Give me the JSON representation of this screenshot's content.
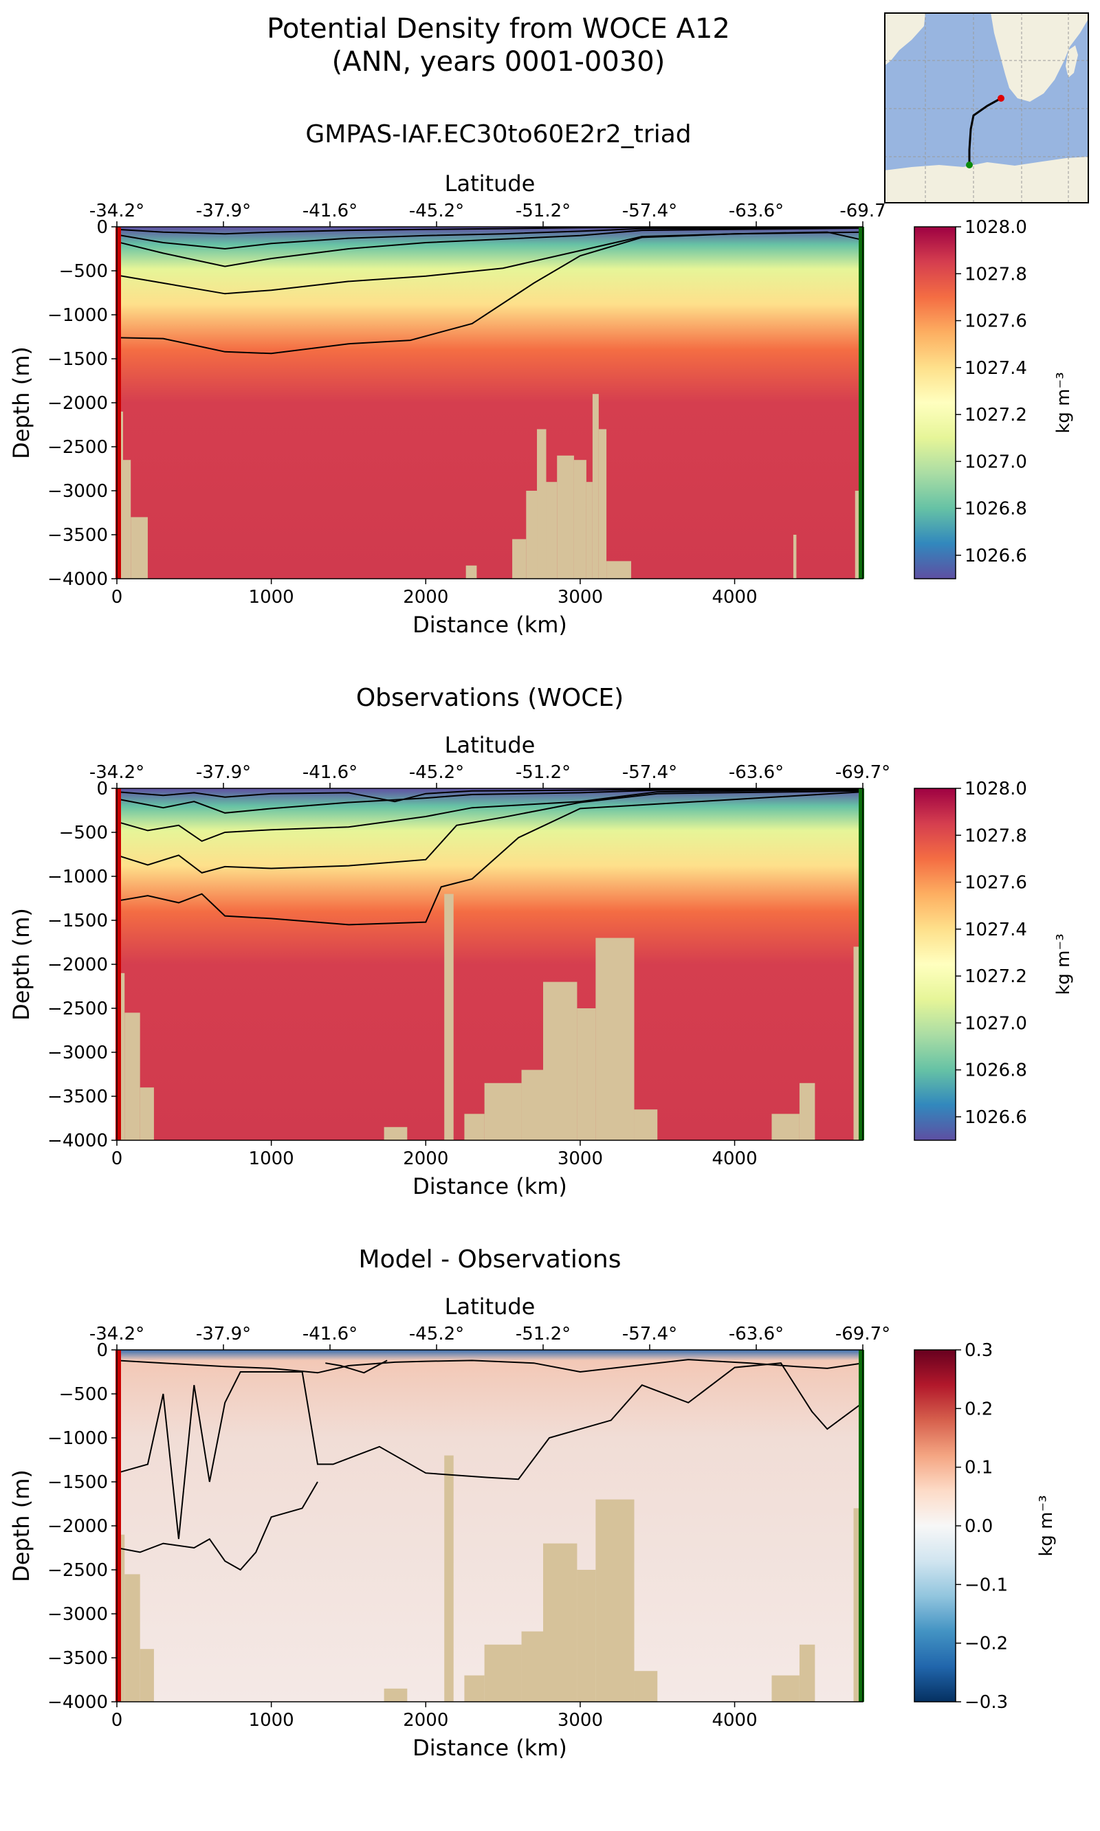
{
  "title": {
    "line1": "Potential Density from WOCE A12",
    "line2": "(ANN, years 0001-0030)",
    "model": "GMPAS-IAF.EC30to60E2r2_triad"
  },
  "colors": {
    "land": "#d6c29a",
    "start_marker": "#cc0000",
    "end_marker": "#0a6e0a",
    "map_ocean": "#98b5e0",
    "map_land": "#f2efdf",
    "contour": "#000000"
  },
  "chart_data": [
    {
      "type": "heatmap",
      "title": "",
      "xlabel": "Distance (km)",
      "ylabel": "Depth (m)",
      "top_axis_label": "Latitude",
      "xlim": [
        0,
        4830
      ],
      "ylim": [
        -4000,
        0
      ],
      "xticks": [
        0,
        1000,
        2000,
        3000,
        4000
      ],
      "xtick_labels": [
        "0",
        "1000",
        "2000",
        "3000",
        "4000"
      ],
      "yticks": [
        0,
        -500,
        -1000,
        -1500,
        -2000,
        -2500,
        -3000,
        -3500,
        -4000
      ],
      "ytick_labels": [
        "0",
        "−500",
        "−1000",
        "−1500",
        "−2000",
        "−2500",
        "−3000",
        "−3500",
        "−4000"
      ],
      "lat_ticks": [
        0,
        690,
        1380,
        2070,
        2760,
        3450,
        4140,
        4830
      ],
      "lat_labels": [
        "-34.2°",
        "-37.9°",
        "-41.6°",
        "-45.2°",
        "-51.2°",
        "-57.4°",
        "-63.6°",
        "-69.7"
      ],
      "colormap": "Spectral_r",
      "colorbar": {
        "label": "kg m⁻³",
        "vmin": 1026.5,
        "vmax": 1028.0,
        "ticks": [
          1028.0,
          1027.8,
          1027.6,
          1027.4,
          1027.2,
          1027.0,
          1026.8,
          1026.6
        ],
        "tick_labels": [
          "1028.0",
          "1027.8",
          "1027.6",
          "1027.4",
          "1027.2",
          "1027.0",
          "1026.8",
          "1026.6"
        ]
      },
      "contour_depths": [
        {
          "x": [
            0,
            300,
            700,
            1000,
            1500,
            2000,
            2500,
            3000,
            3400,
            4830
          ],
          "y": [
            -30,
            -60,
            -80,
            -60,
            -40,
            -30,
            -20,
            -10,
            -5,
            -5
          ]
        },
        {
          "x": [
            0,
            300,
            700,
            1000,
            1500,
            2000,
            2500,
            3000,
            3400,
            4830
          ],
          "y": [
            -90,
            -180,
            -250,
            -190,
            -130,
            -100,
            -80,
            -50,
            -20,
            -10
          ]
        },
        {
          "x": [
            0,
            300,
            700,
            1000,
            1500,
            2000,
            2500,
            3000,
            3400,
            4830
          ],
          "y": [
            -170,
            -300,
            -450,
            -360,
            -250,
            -180,
            -140,
            -100,
            -40,
            -15
          ]
        },
        {
          "x": [
            0,
            300,
            700,
            1000,
            1500,
            2000,
            2500,
            3000,
            3400,
            4000,
            4600,
            4830
          ],
          "y": [
            -550,
            -640,
            -760,
            -720,
            -620,
            -560,
            -470,
            -270,
            -110,
            -80,
            -60,
            -150
          ]
        },
        {
          "x": [
            0,
            300,
            700,
            1000,
            1500,
            1900,
            2300,
            2700,
            3000,
            3400,
            4000,
            4830
          ],
          "y": [
            -1260,
            -1270,
            -1420,
            -1440,
            -1330,
            -1290,
            -1100,
            -640,
            -330,
            -120,
            -80,
            -60
          ]
        }
      ],
      "land_segments": [
        {
          "x": [
            0,
            40
          ],
          "depth": -2100
        },
        {
          "x": [
            40,
            90
          ],
          "depth": -2650
        },
        {
          "x": [
            90,
            200
          ],
          "depth": -3300
        },
        {
          "x": [
            2260,
            2330
          ],
          "depth": -3850
        },
        {
          "x": [
            2560,
            2650
          ],
          "depth": -3550
        },
        {
          "x": [
            2650,
            2720
          ],
          "depth": -3000
        },
        {
          "x": [
            2720,
            2780
          ],
          "depth": -2300
        },
        {
          "x": [
            2780,
            2850
          ],
          "depth": -2900
        },
        {
          "x": [
            2850,
            2960
          ],
          "depth": -2600
        },
        {
          "x": [
            2960,
            3040
          ],
          "depth": -2650
        },
        {
          "x": [
            3040,
            3080
          ],
          "depth": -2900
        },
        {
          "x": [
            3080,
            3120
          ],
          "depth": -1900
        },
        {
          "x": [
            3120,
            3170
          ],
          "depth": -2300
        },
        {
          "x": [
            3170,
            3330
          ],
          "depth": -3800
        },
        {
          "x": [
            4380,
            4400
          ],
          "depth": -3500
        },
        {
          "x": [
            4780,
            4830
          ],
          "depth": -3000
        }
      ]
    },
    {
      "type": "heatmap",
      "title": "Observations (WOCE)",
      "xlabel": "Distance (km)",
      "ylabel": "Depth (m)",
      "top_axis_label": "Latitude",
      "xlim": [
        0,
        4830
      ],
      "ylim": [
        -4000,
        0
      ],
      "xticks": [
        0,
        1000,
        2000,
        3000,
        4000
      ],
      "xtick_labels": [
        "0",
        "1000",
        "2000",
        "3000",
        "4000"
      ],
      "yticks": [
        0,
        -500,
        -1000,
        -1500,
        -2000,
        -2500,
        -3000,
        -3500,
        -4000
      ],
      "ytick_labels": [
        "0",
        "−500",
        "−1000",
        "−1500",
        "−2000",
        "−2500",
        "−3000",
        "−3500",
        "−4000"
      ],
      "lat_ticks": [
        0,
        690,
        1380,
        2070,
        2760,
        3450,
        4140,
        4830
      ],
      "lat_labels": [
        "-34.2°",
        "-37.9°",
        "-41.6°",
        "-45.2°",
        "-51.2°",
        "-57.4°",
        "-63.6°",
        "-69.7°"
      ],
      "colormap": "Spectral_r",
      "colorbar": {
        "label": "kg m⁻³",
        "vmin": 1026.5,
        "vmax": 1028.0,
        "ticks": [
          1028.0,
          1027.8,
          1027.6,
          1027.4,
          1027.2,
          1027.0,
          1026.8,
          1026.6
        ],
        "tick_labels": [
          "1028.0",
          "1027.8",
          "1027.6",
          "1027.4",
          "1027.2",
          "1027.0",
          "1026.8",
          "1026.6"
        ]
      },
      "contour_depths": [
        {
          "x": [
            0,
            300,
            500,
            700,
            1000,
            1500,
            1800,
            2000,
            2300,
            3000,
            3500,
            4830
          ],
          "y": [
            -40,
            -80,
            -50,
            -100,
            -60,
            -50,
            -150,
            -60,
            -30,
            -20,
            -10,
            -5
          ]
        },
        {
          "x": [
            0,
            300,
            500,
            700,
            1000,
            1500,
            2000,
            2300,
            3000,
            3500,
            4830
          ],
          "y": [
            -120,
            -220,
            -150,
            -280,
            -230,
            -160,
            -110,
            -70,
            -50,
            -20,
            -10
          ]
        },
        {
          "x": [
            0,
            200,
            400,
            550,
            700,
            1000,
            1500,
            2000,
            2300,
            3000,
            3500,
            4830
          ],
          "y": [
            -380,
            -480,
            -420,
            -600,
            -500,
            -470,
            -440,
            -320,
            -220,
            -150,
            -40,
            -15
          ]
        },
        {
          "x": [
            0,
            200,
            400,
            550,
            700,
            1000,
            1500,
            2000,
            2200,
            2500,
            3000,
            3500,
            4830
          ],
          "y": [
            -760,
            -870,
            -760,
            -960,
            -890,
            -910,
            -880,
            -810,
            -420,
            -330,
            -160,
            -60,
            -30
          ]
        },
        {
          "x": [
            0,
            200,
            400,
            550,
            700,
            1000,
            1500,
            2000,
            2100,
            2300,
            2600,
            3000,
            4830
          ],
          "y": [
            -1280,
            -1220,
            -1300,
            -1200,
            -1450,
            -1480,
            -1550,
            -1520,
            -1120,
            -1030,
            -560,
            -230,
            -40
          ]
        }
      ],
      "land_segments": [
        {
          "x": [
            0,
            50
          ],
          "depth": -2100
        },
        {
          "x": [
            50,
            150
          ],
          "depth": -2550
        },
        {
          "x": [
            150,
            240
          ],
          "depth": -3400
        },
        {
          "x": [
            1730,
            1880
          ],
          "depth": -3850
        },
        {
          "x": [
            2120,
            2180
          ],
          "depth": -1200
        },
        {
          "x": [
            2250,
            2380
          ],
          "depth": -3700
        },
        {
          "x": [
            2380,
            2620
          ],
          "depth": -3350
        },
        {
          "x": [
            2620,
            2760
          ],
          "depth": -3200
        },
        {
          "x": [
            2760,
            2980
          ],
          "depth": -2200
        },
        {
          "x": [
            2980,
            3100
          ],
          "depth": -2500
        },
        {
          "x": [
            3100,
            3350
          ],
          "depth": -1700
        },
        {
          "x": [
            3350,
            3500
          ],
          "depth": -3650
        },
        {
          "x": [
            4240,
            4420
          ],
          "depth": -3700
        },
        {
          "x": [
            4420,
            4520
          ],
          "depth": -3350
        },
        {
          "x": [
            4770,
            4830
          ],
          "depth": -1800
        }
      ]
    },
    {
      "type": "heatmap",
      "title": "Model - Observations",
      "xlabel": "Distance (km)",
      "ylabel": "Depth (m)",
      "top_axis_label": "Latitude",
      "xlim": [
        0,
        4830
      ],
      "ylim": [
        -4000,
        0
      ],
      "xticks": [
        0,
        1000,
        2000,
        3000,
        4000
      ],
      "xtick_labels": [
        "0",
        "1000",
        "2000",
        "3000",
        "4000"
      ],
      "yticks": [
        0,
        -500,
        -1000,
        -1500,
        -2000,
        -2500,
        -3000,
        -3500,
        -4000
      ],
      "ytick_labels": [
        "0",
        "−500",
        "−1000",
        "−1500",
        "−2000",
        "−2500",
        "−3000",
        "−3500",
        "−4000"
      ],
      "lat_ticks": [
        0,
        690,
        1380,
        2070,
        2760,
        3450,
        4140,
        4830
      ],
      "lat_labels": [
        "-34.2°",
        "-37.9°",
        "-41.6°",
        "-45.2°",
        "-51.2°",
        "-57.4°",
        "-63.6°",
        "-69.7°"
      ],
      "colormap": "RdBu_r",
      "colorbar": {
        "label": "kg m⁻³",
        "vmin": -0.3,
        "vmax": 0.3,
        "ticks": [
          0.3,
          0.2,
          0.1,
          0.0,
          -0.1,
          -0.2,
          -0.3
        ],
        "tick_labels": [
          "0.3",
          "0.2",
          "0.1",
          "0.0",
          "−0.1",
          "−0.2",
          "−0.3"
        ]
      },
      "contour_depths": [
        {
          "x": [
            0,
            300,
            700,
            1000,
            1300,
            1500,
            1800,
            2000,
            2300,
            2700,
            3000,
            3400,
            3700,
            4100,
            4400,
            4600,
            4830
          ],
          "y": [
            -120,
            -150,
            -190,
            -210,
            -260,
            -180,
            -140,
            -130,
            -120,
            -150,
            -250,
            -170,
            -110,
            -150,
            -190,
            -210,
            -150
          ]
        },
        {
          "x": [
            0,
            200,
            300,
            400,
            500,
            600,
            700,
            800,
            1000,
            1200,
            1300,
            1400,
            1700,
            2000,
            2400,
            2600,
            2800,
            3000,
            3200,
            3400,
            3700,
            4000,
            4300,
            4500,
            4600,
            4830
          ],
          "y": [
            -1400,
            -1300,
            -500,
            -2150,
            -400,
            -1500,
            -600,
            -250,
            -250,
            -250,
            -1300,
            -1300,
            -1100,
            -1400,
            -1450,
            -1470,
            -1000,
            -900,
            -800,
            -400,
            -600,
            -200,
            -150,
            -700,
            -900,
            -600
          ]
        },
        {
          "x": [
            0,
            150,
            300,
            500,
            600,
            700,
            800,
            900,
            1000,
            1200,
            1300
          ],
          "y": [
            -2250,
            -2300,
            -2200,
            -2250,
            -2150,
            -2400,
            -2500,
            -2300,
            -1900,
            -1800,
            -1500
          ]
        },
        {
          "x": [
            1350,
            1450,
            1600,
            1750
          ],
          "y": [
            -150,
            -180,
            -260,
            -120
          ]
        }
      ],
      "land_segments": [
        {
          "x": [
            0,
            50
          ],
          "depth": -2100
        },
        {
          "x": [
            50,
            150
          ],
          "depth": -2550
        },
        {
          "x": [
            150,
            240
          ],
          "depth": -3400
        },
        {
          "x": [
            1730,
            1880
          ],
          "depth": -3850
        },
        {
          "x": [
            2120,
            2180
          ],
          "depth": -1200
        },
        {
          "x": [
            2250,
            2380
          ],
          "depth": -3700
        },
        {
          "x": [
            2380,
            2620
          ],
          "depth": -3350
        },
        {
          "x": [
            2620,
            2760
          ],
          "depth": -3200
        },
        {
          "x": [
            2760,
            2980
          ],
          "depth": -2200
        },
        {
          "x": [
            2980,
            3100
          ],
          "depth": -2500
        },
        {
          "x": [
            3100,
            3350
          ],
          "depth": -1700
        },
        {
          "x": [
            3350,
            3500
          ],
          "depth": -3650
        },
        {
          "x": [
            4240,
            4420
          ],
          "depth": -3700
        },
        {
          "x": [
            4420,
            4520
          ],
          "depth": -3350
        },
        {
          "x": [
            4770,
            4830
          ],
          "depth": -1800
        }
      ]
    }
  ]
}
